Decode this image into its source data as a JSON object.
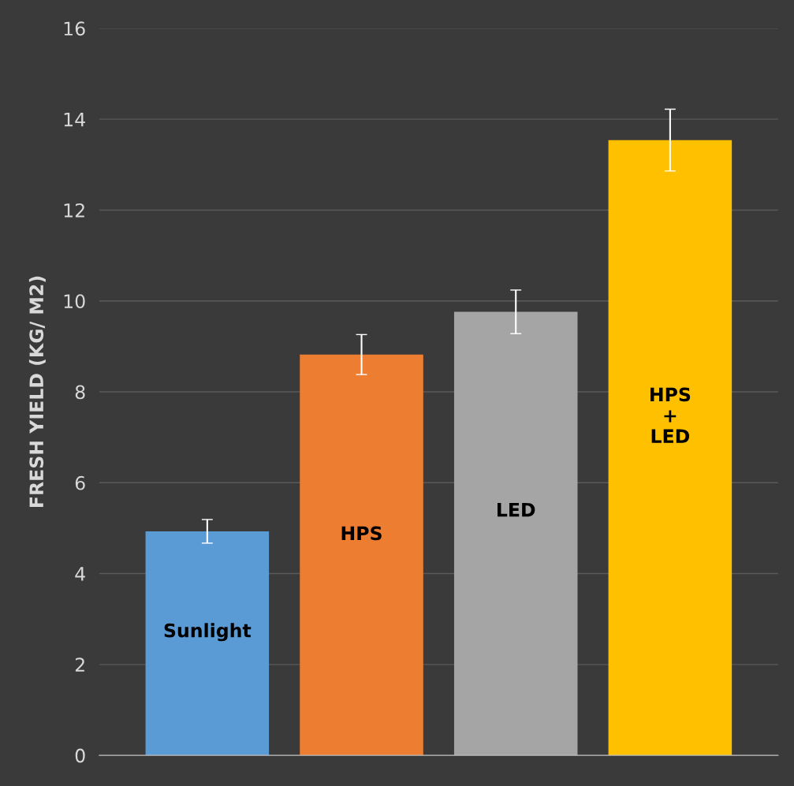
{
  "chart_data": {
    "type": "bar",
    "ylabel": "FRESH YIELD (KG/ M2)",
    "categories": [
      "Sunlight",
      "HPS",
      "LED",
      "HPS\n+\nLED"
    ],
    "values": [
      4.93,
      8.82,
      9.76,
      13.54
    ],
    "colors": [
      "#5b9bd5",
      "#ed7d31",
      "#a5a5a5",
      "#ffc000"
    ],
    "errors": [
      0.26,
      0.44,
      0.48,
      0.68
    ],
    "ylim": [
      0,
      16
    ],
    "yticks": [
      0,
      2,
      4,
      6,
      8,
      10,
      12,
      14,
      16
    ],
    "grid": "y"
  }
}
